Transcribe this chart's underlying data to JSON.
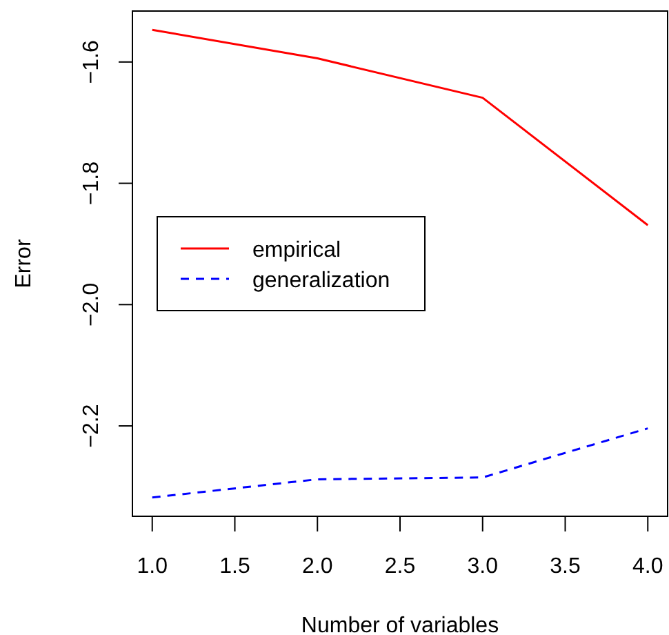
{
  "chart_data": {
    "type": "line",
    "xlabel": "Number of variables",
    "ylabel": "Error",
    "x": [
      1,
      2,
      3,
      4
    ],
    "series": [
      {
        "name": "empirical",
        "color": "#ff0000",
        "values": [
          -1.547,
          -1.594,
          -1.659,
          -1.869
        ],
        "line_style": "solid"
      },
      {
        "name": "generalization",
        "color": "#0000ff",
        "values": [
          -2.318,
          -2.288,
          -2.285,
          -2.204
        ],
        "line_style": "dashed"
      }
    ],
    "xlim": [
      0.88,
      4.12
    ],
    "ylim": [
      -2.349,
      -1.516
    ],
    "xticks": [
      {
        "value": 1,
        "label": "1.0"
      },
      {
        "value": 1.5,
        "label": "1.5"
      },
      {
        "value": 2,
        "label": "2.0"
      },
      {
        "value": 2.5,
        "label": "2.5"
      },
      {
        "value": 3,
        "label": "3.0"
      },
      {
        "value": 3.5,
        "label": "3.5"
      },
      {
        "value": 4,
        "label": "4.0"
      }
    ],
    "yticks": [
      {
        "value": -2.2,
        "label": "−2.2"
      },
      {
        "value": -2,
        "label": "−2.0"
      },
      {
        "value": -1.8,
        "label": "−1.8"
      },
      {
        "value": -1.6,
        "label": "−1.6"
      }
    ],
    "grid": false,
    "legend": "center",
    "marker": "none"
  }
}
